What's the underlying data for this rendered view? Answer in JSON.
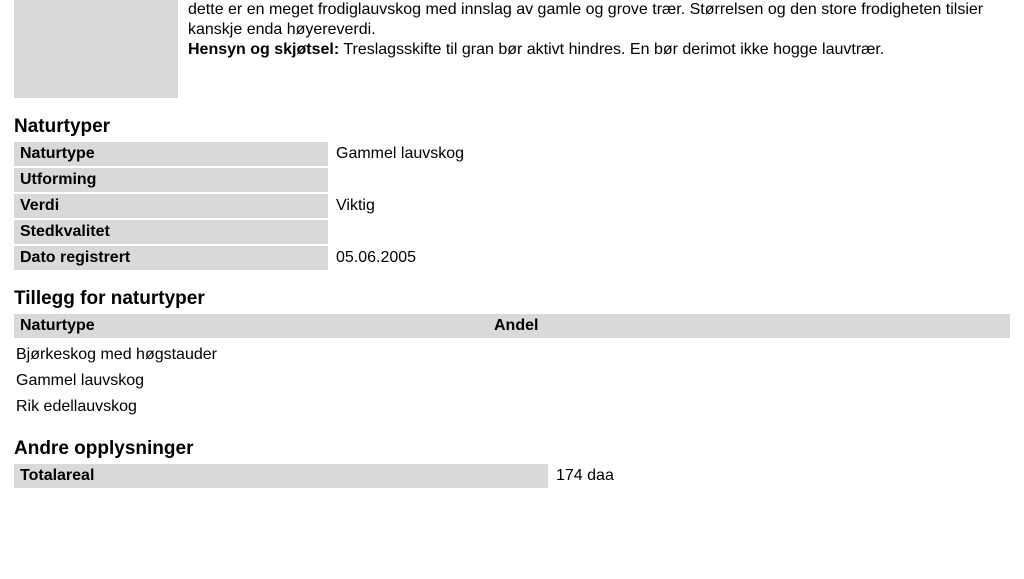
{
  "intro": {
    "line1": "dette er en meget frodiglauvskog med innslag av gamle og grove trær. Størrelsen og den store frodigheten tilsier kanskje enda høyereverdi.",
    "line2_label": "Hensyn og skjøtsel:",
    "line2_rest": " Treslagsskifte til gran bør aktivt hindres. En bør derimot ikke hogge lauvtrær."
  },
  "naturtyper": {
    "heading": "Naturtyper",
    "rows": {
      "naturtype_label": "Naturtype",
      "naturtype_value": "Gammel lauvskog",
      "utforming_label": "Utforming",
      "utforming_value": "",
      "verdi_label": "Verdi",
      "verdi_value": "Viktig",
      "stedkvalitet_label": "Stedkvalitet",
      "stedkvalitet_value": "",
      "dato_label": "Dato registrert",
      "dato_value": "05.06.2005"
    }
  },
  "tillegg": {
    "heading": "Tillegg for naturtyper",
    "col_a": "Naturtype",
    "col_b": "Andel",
    "items": {
      "i0": "Bjørkeskog med høgstauder",
      "i1": "Gammel lauvskog",
      "i2": "Rik edellauvskog"
    }
  },
  "andre": {
    "heading": "Andre opplysninger",
    "totalareal_label": "Totalareal",
    "totalareal_value": "174 daa"
  }
}
